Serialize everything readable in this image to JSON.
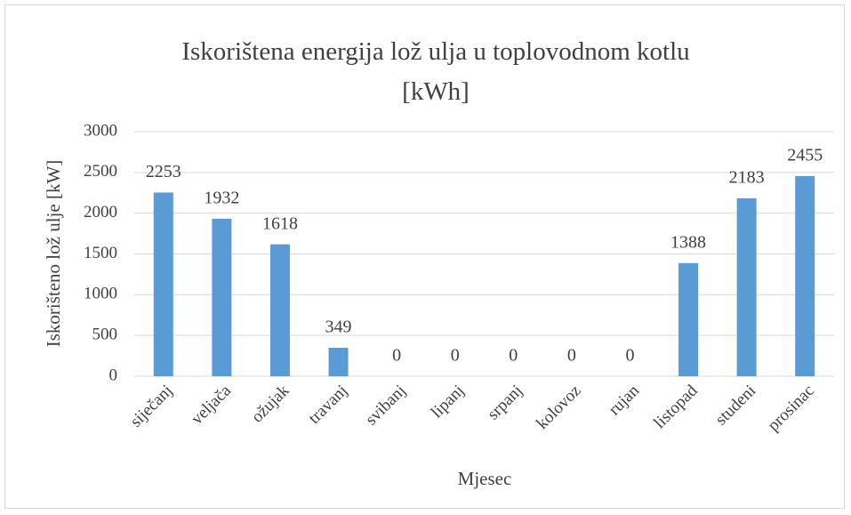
{
  "chart_data": {
    "type": "bar",
    "title": "Iskorištena energija lož ulja u toplovodnom kotlu [kWh]",
    "xlabel": "Mjesec",
    "ylabel": "Iskorišteno lož ulje [kW]",
    "categories": [
      "siječanj",
      "veljača",
      "ožujak",
      "travanj",
      "svibanj",
      "lipanj",
      "srpanj",
      "kolovoz",
      "rujan",
      "listopad",
      "studeni",
      "prosinac"
    ],
    "values": [
      2253,
      1932,
      1618,
      349,
      0,
      0,
      0,
      0,
      0,
      1388,
      2183,
      2455
    ],
    "color": "#5b9bd5",
    "ylim": [
      0,
      3000
    ],
    "yticks": [
      0,
      500,
      1000,
      1500,
      2000,
      2500,
      3000
    ],
    "grid": true
  }
}
